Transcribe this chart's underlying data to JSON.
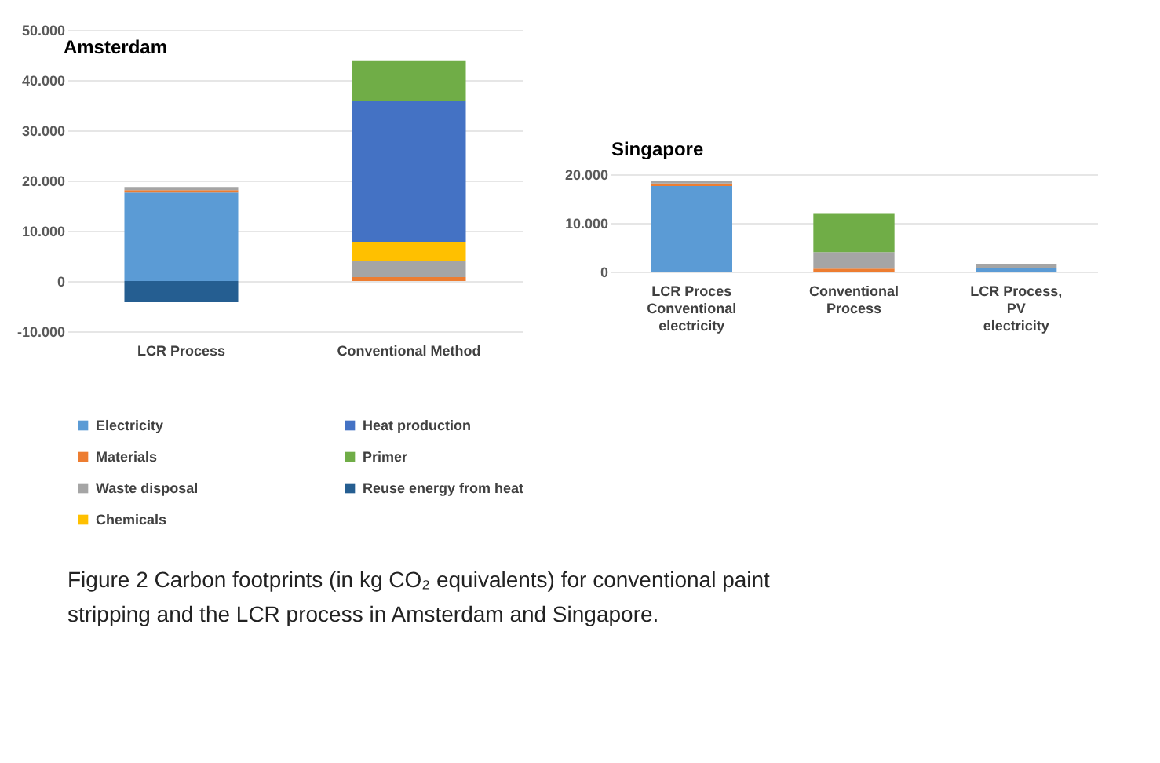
{
  "chart_data": [
    {
      "type": "bar",
      "stacked": true,
      "title": "Amsterdam",
      "categories": [
        "LCR Process",
        "Conventional Method"
      ],
      "series": [
        {
          "name": "Electricity",
          "color": "#5b9bd5",
          "values": [
            17600,
            0
          ]
        },
        {
          "name": "Materials",
          "color": "#ed7d31",
          "values": [
            500,
            800
          ]
        },
        {
          "name": "Waste disposal",
          "color": "#a5a5a5",
          "values": [
            600,
            3200
          ]
        },
        {
          "name": "Chemicals",
          "color": "#ffc000",
          "values": [
            0,
            3800
          ]
        },
        {
          "name": "Heat production",
          "color": "#4472c4",
          "values": [
            0,
            28000
          ]
        },
        {
          "name": "Primer",
          "color": "#70ad47",
          "values": [
            0,
            8000
          ]
        },
        {
          "name": "Reuse energy from heat",
          "color": "#255e91",
          "values": [
            -4200,
            0
          ]
        }
      ],
      "ylim": [
        -10000,
        50000
      ],
      "yticks": [
        {
          "value": -10000,
          "label": "-10.000"
        },
        {
          "value": 0,
          "label": "0"
        },
        {
          "value": 10000,
          "label": "10.000"
        },
        {
          "value": 20000,
          "label": "20.000"
        },
        {
          "value": 30000,
          "label": "30.000"
        },
        {
          "value": 40000,
          "label": "40.000"
        },
        {
          "value": 50000,
          "label": "50.000"
        }
      ],
      "grid": "y",
      "legend": "bottom",
      "annotations": [
        "Figure 2 Carbon footprints (in kg CO₂ equivalents) for conventional paint stripping and the LCR process in Amsterdam and Singapore."
      ]
    },
    {
      "type": "bar",
      "stacked": true,
      "title": "Singapore",
      "categories": [
        "LCR Proces Conventional electricity",
        "Conventional Process",
        "LCR Process, PV electricity"
      ],
      "series": [
        {
          "name": "Electricity",
          "color": "#5b9bd5",
          "values": [
            17600,
            0,
            800
          ]
        },
        {
          "name": "Materials",
          "color": "#ed7d31",
          "values": [
            500,
            600,
            0
          ]
        },
        {
          "name": "Waste disposal",
          "color": "#a5a5a5",
          "values": [
            600,
            3400,
            800
          ]
        },
        {
          "name": "Primer",
          "color": "#70ad47",
          "values": [
            0,
            8000,
            0
          ]
        }
      ],
      "ylim": [
        0,
        20000
      ],
      "yticks": [
        {
          "value": 0,
          "label": "0"
        },
        {
          "value": 10000,
          "label": "10.000"
        },
        {
          "value": 20000,
          "label": "20.000"
        }
      ],
      "grid": "y"
    }
  ]
}
